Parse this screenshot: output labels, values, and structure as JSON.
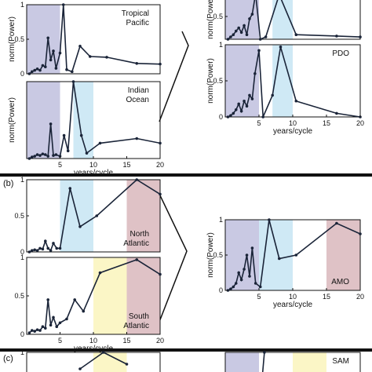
{
  "figure": {
    "panel_labels": [
      "(b)",
      "(c)"
    ],
    "shading_colors": {
      "blue_band": "#c9c9e3",
      "cyan_band": "#cfe9f5",
      "yellow_band": "#fbf6c6",
      "red_band": "#dfc2c6"
    }
  },
  "chart_data": [
    {
      "id": "tropical-pacific",
      "type": "line",
      "annotation": "Tropical\nPacific",
      "ylabel": "norm(Power)",
      "xlim": [
        0,
        20
      ],
      "ylim": [
        0,
        1
      ],
      "xticks": [],
      "yticks": [
        "0",
        "0.5",
        "1"
      ],
      "bands": [
        {
          "from": 0,
          "to": 5,
          "color": "#c9c9e3"
        }
      ],
      "x": [
        0.4,
        0.8,
        1.2,
        1.6,
        2.0,
        2.4,
        2.8,
        3.2,
        3.6,
        4.0,
        4.4,
        5.0,
        5.5,
        6.0,
        6.8,
        8.0,
        9.5,
        12.0,
        16.5,
        20.0
      ],
      "y": [
        0.0,
        0.03,
        0.05,
        0.07,
        0.05,
        0.12,
        0.1,
        0.52,
        0.2,
        0.33,
        0.08,
        0.3,
        1.0,
        0.06,
        0.03,
        0.4,
        0.25,
        0.24,
        0.15,
        0.14
      ]
    },
    {
      "id": "indian-ocean",
      "type": "line",
      "annotation": "Indian\nOcean",
      "ylabel": "norm(Power)",
      "xlabel": "years/cycle",
      "xlim": [
        0,
        20
      ],
      "ylim": [
        0,
        1
      ],
      "xticks": [
        "5",
        "10",
        "15",
        "20"
      ],
      "yticks": [],
      "bands": [
        {
          "from": 0,
          "to": 5,
          "color": "#c9c9e3"
        },
        {
          "from": 7,
          "to": 10,
          "color": "#cfe9f5"
        }
      ],
      "x": [
        0.4,
        0.8,
        1.2,
        1.6,
        2.0,
        2.4,
        2.8,
        3.2,
        3.6,
        4.0,
        4.4,
        5.0,
        5.6,
        6.2,
        7.0,
        8.2,
        9.0,
        11.0,
        16.5,
        20.0
      ],
      "y": [
        0.0,
        0.02,
        0.03,
        0.05,
        0.04,
        0.06,
        0.05,
        0.03,
        0.45,
        0.04,
        0.05,
        0.03,
        0.3,
        0.1,
        1.0,
        0.3,
        0.07,
        0.2,
        0.26,
        0.2
      ]
    },
    {
      "id": "pdo-upper",
      "type": "line",
      "annotation": "",
      "ylabel": "norm(Power)",
      "xlim": [
        0,
        20
      ],
      "ylim": [
        0,
        1
      ],
      "xticks": [],
      "yticks": [
        "0.5",
        "1"
      ],
      "bands": [
        {
          "from": 0,
          "to": 5,
          "color": "#c9c9e3"
        },
        {
          "from": 7,
          "to": 10,
          "color": "#cfe9f5"
        }
      ],
      "x": [
        0.4,
        0.8,
        1.2,
        1.6,
        2.0,
        2.4,
        2.8,
        3.2,
        3.6,
        4.0,
        4.5,
        5.2,
        6.0,
        8.0,
        10.5,
        16.5,
        20.0
      ],
      "y": [
        0.0,
        0.05,
        0.1,
        0.18,
        0.25,
        0.15,
        0.3,
        0.1,
        0.45,
        0.55,
        1.0,
        0.0,
        0.05,
        0.98,
        0.1,
        0.07,
        0.05
      ]
    },
    {
      "id": "pdo",
      "type": "line",
      "annotation": "PDO",
      "ylabel": "norm(Power)",
      "xlabel": "years/cycle",
      "xlim": [
        0,
        20
      ],
      "ylim": [
        0,
        1
      ],
      "xticks": [
        "5",
        "10",
        "15",
        "20"
      ],
      "yticks": [
        "0",
        "0.5",
        "1"
      ],
      "bands": [
        {
          "from": 0,
          "to": 5,
          "color": "#c9c9e3"
        },
        {
          "from": 7,
          "to": 10,
          "color": "#cfe9f5"
        }
      ],
      "x": [
        0.4,
        0.8,
        1.2,
        1.6,
        2.0,
        2.4,
        2.8,
        3.2,
        3.6,
        4.0,
        4.4,
        5.0,
        5.6,
        7.0,
        8.2,
        10.5,
        16.5,
        20.0
      ],
      "y": [
        0.0,
        0.02,
        0.05,
        0.1,
        0.18,
        0.08,
        0.22,
        0.15,
        0.3,
        0.25,
        0.6,
        0.92,
        0.0,
        0.3,
        0.97,
        0.22,
        0.05,
        0.0
      ]
    },
    {
      "id": "north-atlantic",
      "type": "line",
      "annotation": "North\nAtlantic",
      "ylabel": "",
      "xlim": [
        0,
        20
      ],
      "ylim": [
        0,
        1
      ],
      "xticks": [],
      "yticks": [
        "0",
        "0.5",
        "1"
      ],
      "bands": [
        {
          "from": 5,
          "to": 10,
          "color": "#cfe9f5"
        },
        {
          "from": 15,
          "to": 20,
          "color": "#dfc2c6"
        }
      ],
      "x": [
        0.4,
        0.8,
        1.2,
        1.6,
        2.0,
        2.4,
        2.8,
        3.2,
        3.6,
        4.0,
        4.5,
        5.0,
        6.5,
        8.0,
        10.5,
        16.5,
        20.0
      ],
      "y": [
        0.0,
        0.02,
        0.03,
        0.02,
        0.05,
        0.04,
        0.15,
        0.05,
        0.02,
        0.12,
        0.05,
        0.05,
        0.88,
        0.35,
        0.5,
        1.0,
        0.8
      ]
    },
    {
      "id": "south-atlantic",
      "type": "line",
      "annotation": "South\nAtlantic",
      "ylabel": "",
      "xlabel": "years/cycle",
      "xlim": [
        0,
        20
      ],
      "ylim": [
        0,
        1
      ],
      "xticks": [
        "5",
        "10",
        "15",
        "20"
      ],
      "yticks": [
        "0",
        "0.5",
        "1"
      ],
      "bands": [
        {
          "from": 10,
          "to": 15,
          "color": "#fbf6c6"
        },
        {
          "from": 15,
          "to": 20,
          "color": "#dfc2c6"
        }
      ],
      "x": [
        0.4,
        0.8,
        1.2,
        1.6,
        2.0,
        2.4,
        2.8,
        3.2,
        3.6,
        4.0,
        4.5,
        5.0,
        6.0,
        7.2,
        8.5,
        11.0,
        16.5,
        20.0
      ],
      "y": [
        0.02,
        0.05,
        0.04,
        0.06,
        0.05,
        0.1,
        0.08,
        0.45,
        0.12,
        0.22,
        0.1,
        0.15,
        0.2,
        0.45,
        0.3,
        0.8,
        0.97,
        0.78
      ]
    },
    {
      "id": "amo",
      "type": "line",
      "annotation": "AMO",
      "ylabel": "norm(Power)",
      "xlabel": "years/cycle",
      "xlim": [
        0,
        20
      ],
      "ylim": [
        0,
        1
      ],
      "xticks": [
        "5",
        "10",
        "15",
        "20"
      ],
      "yticks": [
        "0",
        "0.5",
        "1"
      ],
      "bands": [
        {
          "from": 0,
          "to": 5,
          "color": "#c9c9e3"
        },
        {
          "from": 5,
          "to": 10,
          "color": "#cfe9f5"
        },
        {
          "from": 15,
          "to": 20,
          "color": "#dfc2c6"
        }
      ],
      "x": [
        0.4,
        0.8,
        1.2,
        1.6,
        2.0,
        2.4,
        2.8,
        3.2,
        3.6,
        4.0,
        4.5,
        5.2,
        6.5,
        8.0,
        10.5,
        16.5,
        20.0
      ],
      "y": [
        0.0,
        0.02,
        0.05,
        0.1,
        0.25,
        0.15,
        0.3,
        0.5,
        0.2,
        0.6,
        0.1,
        0.05,
        1.0,
        0.45,
        0.5,
        0.95,
        0.8
      ]
    },
    {
      "id": "sam-left",
      "type": "line",
      "annotation": "",
      "ylabel": "",
      "xlim": [
        0,
        20
      ],
      "ylim": [
        0,
        1
      ],
      "xticks": [],
      "yticks": [
        "1"
      ],
      "bands": [
        {
          "from": 10,
          "to": 15,
          "color": "#fbf6c6"
        }
      ],
      "x": [
        8.0,
        11.5,
        15.0
      ],
      "y": [
        0.3,
        1.0,
        0.5
      ]
    },
    {
      "id": "sam",
      "type": "line",
      "annotation": "SAM",
      "ylabel": "",
      "xlim": [
        0,
        20
      ],
      "ylim": [
        0,
        1
      ],
      "xticks": [],
      "yticks": [],
      "bands": [
        {
          "from": 0,
          "to": 5,
          "color": "#c9c9e3"
        },
        {
          "from": 10,
          "to": 15,
          "color": "#fbf6c6"
        }
      ],
      "x": [
        5.5,
        5.8
      ],
      "y": [
        0.0,
        1.0
      ]
    }
  ]
}
